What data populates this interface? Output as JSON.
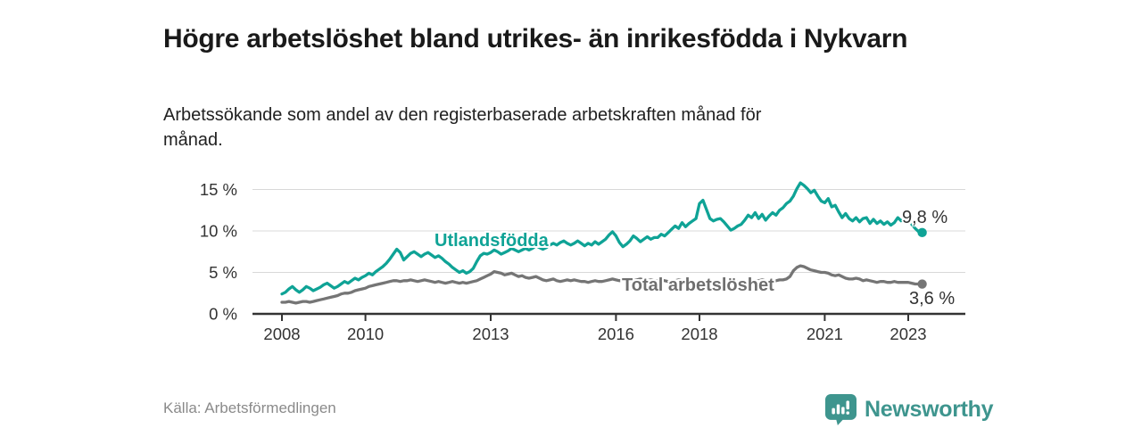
{
  "branding": {
    "wordmark": "Newsworthy",
    "logo_icon": "speech-bubble-bar-chart-icon",
    "brand_color": "#3e958e"
  },
  "colors": {
    "accent_teal": "#0fa396",
    "series_gray": "#757575",
    "axis": "#333333",
    "grid": "#d8d8d8",
    "title_text": "#1a1a1a",
    "muted_text": "#8a8a8a"
  },
  "chart_data": {
    "type": "line",
    "title": "Högre arbetslöshet bland utrikes- än inrikesfödda i Nykvarn",
    "subtitle": "Arbetssökande som andel av den registerbaserade arbetskraften månad för månad.",
    "source": "Källa: Arbetsförmedlingen",
    "x_unit": "month",
    "x_start": "2008-01",
    "x_end": "2023-05",
    "ylim": [
      0,
      16.5
    ],
    "grid": true,
    "legend": "inline-labels",
    "yticks": [
      {
        "v": 0,
        "label": "0 %"
      },
      {
        "v": 5,
        "label": "5 %"
      },
      {
        "v": 10,
        "label": "10 %"
      },
      {
        "v": 15,
        "label": "15 %"
      }
    ],
    "xticks": [
      {
        "year": 2008,
        "label": "2008"
      },
      {
        "year": 2010,
        "label": "2010"
      },
      {
        "year": 2013,
        "label": "2013"
      },
      {
        "year": 2016,
        "label": "2016"
      },
      {
        "year": 2018,
        "label": "2018"
      },
      {
        "year": 2021,
        "label": "2021"
      },
      {
        "year": 2023,
        "label": "2023"
      }
    ],
    "series": [
      {
        "name": "Utlandsfödda",
        "color": "#0fa396",
        "end_label": "9,8 %",
        "last_value": 9.8,
        "values": [
          2.4,
          2.6,
          3.0,
          3.3,
          2.9,
          2.6,
          2.9,
          3.3,
          3.1,
          2.8,
          3.0,
          3.2,
          3.5,
          3.7,
          3.4,
          3.1,
          3.3,
          3.6,
          3.9,
          3.7,
          4.0,
          4.3,
          4.1,
          4.4,
          4.6,
          4.9,
          4.7,
          5.1,
          5.4,
          5.7,
          6.1,
          6.6,
          7.2,
          7.8,
          7.4,
          6.5,
          6.9,
          7.3,
          7.5,
          7.2,
          6.9,
          7.2,
          7.4,
          7.1,
          6.8,
          7.0,
          6.7,
          6.3,
          6.0,
          5.6,
          5.3,
          5.0,
          5.2,
          4.9,
          5.1,
          5.5,
          6.3,
          7.0,
          7.3,
          7.2,
          7.4,
          7.7,
          7.5,
          7.2,
          7.4,
          7.6,
          7.9,
          7.7,
          7.5,
          7.7,
          7.9,
          7.7,
          7.9,
          8.2,
          8.0,
          7.8,
          8.0,
          8.3,
          8.5,
          8.3,
          8.6,
          8.8,
          8.5,
          8.3,
          8.5,
          8.8,
          8.5,
          8.2,
          8.5,
          8.3,
          8.7,
          8.4,
          8.7,
          9.0,
          9.5,
          9.9,
          9.4,
          8.6,
          8.1,
          8.4,
          8.8,
          9.4,
          9.1,
          8.7,
          9.0,
          9.3,
          9.0,
          9.2,
          9.2,
          9.6,
          9.4,
          9.8,
          10.2,
          10.6,
          10.3,
          11.0,
          10.5,
          10.9,
          11.2,
          11.5,
          13.3,
          13.7,
          12.6,
          11.5,
          11.2,
          11.4,
          11.5,
          11.1,
          10.6,
          10.1,
          10.3,
          10.6,
          10.8,
          11.3,
          11.9,
          11.6,
          12.2,
          11.5,
          12.0,
          11.3,
          11.8,
          12.2,
          11.9,
          12.5,
          12.8,
          13.3,
          13.6,
          14.2,
          15.1,
          15.8,
          15.5,
          15.1,
          14.6,
          14.9,
          14.2,
          13.6,
          13.4,
          13.9,
          12.9,
          13.1,
          12.3,
          11.6,
          12.1,
          11.5,
          11.2,
          11.6,
          11.1,
          11.5,
          11.6,
          10.9,
          11.4,
          10.9,
          11.2,
          10.8,
          11.1,
          10.7,
          11.0,
          11.6,
          11.2,
          11.8,
          11.4,
          10.8,
          10.3,
          9.9,
          9.8
        ]
      },
      {
        "name": "Total arbetslöshet",
        "color": "#757575",
        "end_label": "3,6 %",
        "last_value": 3.6,
        "values": [
          1.4,
          1.4,
          1.5,
          1.4,
          1.3,
          1.4,
          1.5,
          1.5,
          1.4,
          1.5,
          1.6,
          1.7,
          1.8,
          1.9,
          2.0,
          2.1,
          2.2,
          2.4,
          2.5,
          2.5,
          2.6,
          2.8,
          2.9,
          3.0,
          3.1,
          3.3,
          3.4,
          3.5,
          3.6,
          3.7,
          3.8,
          3.9,
          4.0,
          4.0,
          3.9,
          4.0,
          4.0,
          4.1,
          4.0,
          3.9,
          4.0,
          4.1,
          4.0,
          3.9,
          3.8,
          3.9,
          3.8,
          3.7,
          3.8,
          3.9,
          3.8,
          3.7,
          3.8,
          3.7,
          3.8,
          3.9,
          4.0,
          4.2,
          4.4,
          4.6,
          4.8,
          5.1,
          5.0,
          4.9,
          4.7,
          4.8,
          4.9,
          4.7,
          4.5,
          4.6,
          4.4,
          4.3,
          4.4,
          4.5,
          4.3,
          4.1,
          4.0,
          4.1,
          4.2,
          4.0,
          3.9,
          4.0,
          4.1,
          4.0,
          4.1,
          4.0,
          3.9,
          3.9,
          3.8,
          3.9,
          4.0,
          3.9,
          3.9,
          4.0,
          4.1,
          4.2,
          4.1,
          4.0,
          4.1,
          4.0,
          3.9,
          4.0,
          4.1,
          4.2,
          4.1,
          4.0,
          4.1,
          4.0,
          4.0,
          4.1,
          4.0,
          3.9,
          3.9,
          4.0,
          4.1,
          4.0,
          3.9,
          3.8,
          3.9,
          3.8,
          3.9,
          3.8,
          3.7,
          3.7,
          3.8,
          3.9,
          3.8,
          3.7,
          3.6,
          3.7,
          3.8,
          3.9,
          4.0,
          3.9,
          3.8,
          3.9,
          4.0,
          4.0,
          4.1,
          4.0,
          3.9,
          4.0,
          4.0,
          4.1,
          4.1,
          4.2,
          4.5,
          5.2,
          5.6,
          5.8,
          5.7,
          5.5,
          5.3,
          5.2,
          5.1,
          5.0,
          5.0,
          4.9,
          4.7,
          4.6,
          4.7,
          4.5,
          4.3,
          4.2,
          4.2,
          4.3,
          4.2,
          4.0,
          4.1,
          4.0,
          3.9,
          3.8,
          3.9,
          3.9,
          3.8,
          3.8,
          3.9,
          3.8,
          3.8,
          3.8,
          3.8,
          3.7,
          3.6,
          3.6,
          3.6
        ]
      }
    ]
  }
}
